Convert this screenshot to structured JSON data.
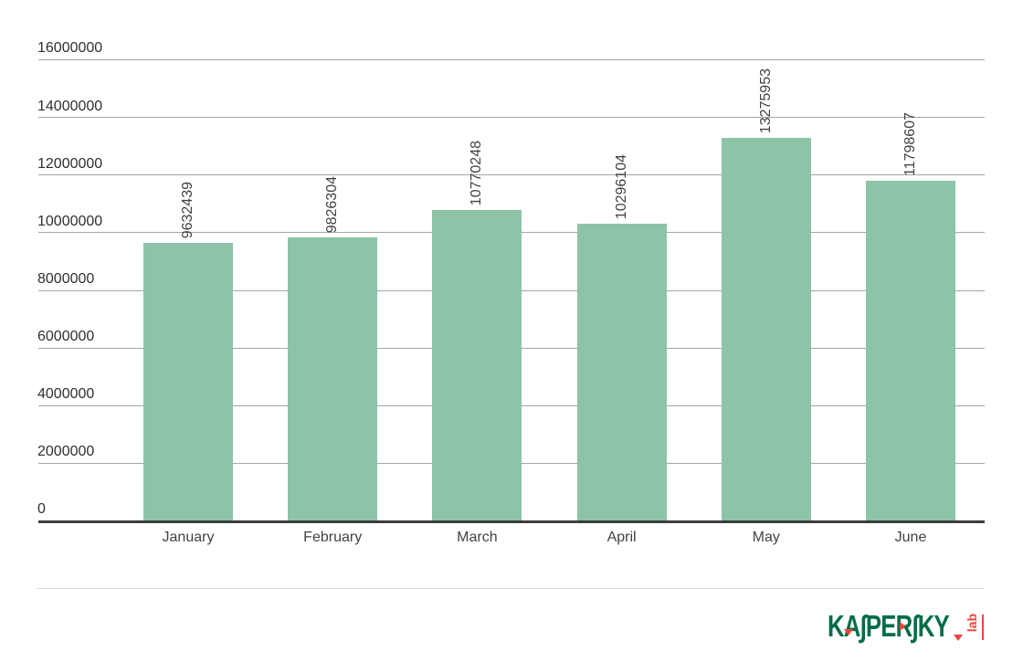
{
  "chart_data": {
    "type": "bar",
    "title": "",
    "categories": [
      "January",
      "February",
      "March",
      "April",
      "May",
      "June"
    ],
    "values": [
      9632439,
      9826304,
      10770248,
      10296104,
      13275953,
      11798607
    ],
    "yticks": [
      "0",
      "2000000",
      "4000000",
      "6000000",
      "8000000",
      "10000000",
      "12000000",
      "14000000",
      "16000000"
    ],
    "ylim": [
      0,
      16000000
    ],
    "xlabel": "",
    "ylabel": "",
    "grid": true,
    "legend": "none",
    "bar_color": "#8dc3a7",
    "value_labels_rotated": true
  },
  "branding": {
    "logo_text": "KASPERSKY",
    "logo_sub": "lab",
    "logo_green": "#006d46",
    "logo_red": "#e8463c"
  },
  "colors": {
    "background": "#ffffff",
    "gridline": "#a6a6a6",
    "axis_line": "#3d3d3d",
    "tick_label": "#2f2f2f",
    "value_label": "#424242",
    "divider": "#d9d9d9"
  }
}
